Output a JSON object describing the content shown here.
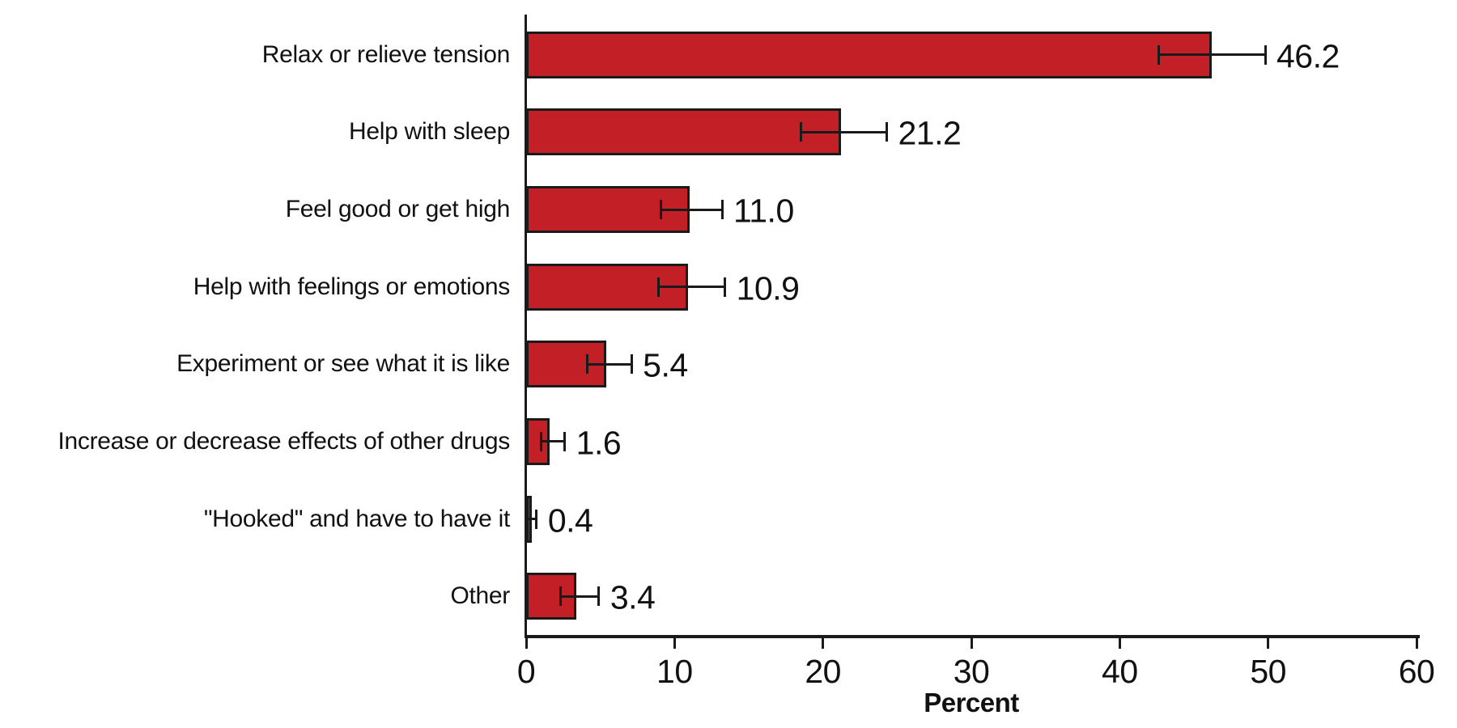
{
  "chart_data": {
    "type": "bar",
    "orientation": "horizontal",
    "title": "",
    "xlabel": "Percent",
    "ylabel": "",
    "xlim": [
      0,
      60
    ],
    "xticks": [
      0,
      10,
      20,
      30,
      40,
      50,
      60
    ],
    "grid": false,
    "legend": false,
    "bar_color": "#c21f26",
    "bar_border_color": "#1a1a1a",
    "axis_color": "#1a1a1a",
    "categories": [
      "Relax or relieve tension",
      "Help with sleep",
      "Feel good or get high",
      "Help with feelings or emotions",
      "Experiment or see what it is like",
      "Increase or decrease effects of other drugs",
      "\"Hooked\" and have to have it",
      "Other"
    ],
    "values": [
      46.2,
      21.2,
      11.0,
      10.9,
      5.4,
      1.6,
      0.4,
      3.4
    ],
    "value_labels": [
      "46.2",
      "21.2",
      "11.0",
      "10.9",
      "5.4",
      "1.6",
      "0.4",
      "3.4"
    ],
    "error_low": [
      42.6,
      18.5,
      9.1,
      8.9,
      4.1,
      1.0,
      0.1,
      2.3
    ],
    "error_high": [
      49.8,
      24.3,
      13.2,
      13.4,
      7.1,
      2.6,
      0.7,
      4.9
    ]
  }
}
